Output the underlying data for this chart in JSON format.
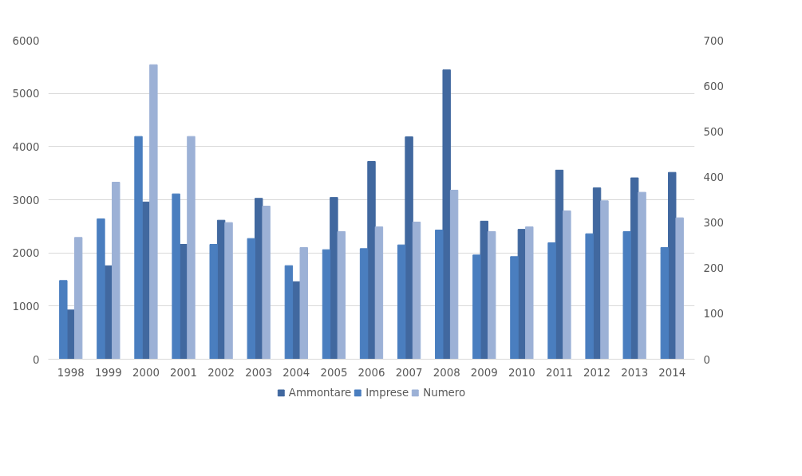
{
  "chart_data": {
    "type": "bar",
    "categories": [
      "1998",
      "1999",
      "2000",
      "2001",
      "2002",
      "2003",
      "2004",
      "2005",
      "2006",
      "2007",
      "2008",
      "2009",
      "2010",
      "2011",
      "2012",
      "2013",
      "2014"
    ],
    "series": [
      {
        "name": "Ammontare",
        "color": "#41689f",
        "axis": "y2",
        "values": [
          108,
          205,
          345,
          252,
          305,
          353,
          170,
          355,
          434,
          488,
          635,
          303,
          285,
          415,
          376,
          398,
          410
        ]
      },
      {
        "name": "Imprese",
        "color": "#4a7ebf",
        "values": [
          1480,
          2640,
          4190,
          3110,
          2160,
          2270,
          1760,
          2060,
          2080,
          2150,
          2430,
          1960,
          1930,
          2190,
          2360,
          2400,
          2100
        ]
      },
      {
        "name": "Numero",
        "color": "#9cb1d6",
        "values": [
          2290,
          3330,
          5540,
          4190,
          2570,
          2880,
          2100,
          2400,
          2490,
          2580,
          3180,
          2400,
          2490,
          2790,
          2980,
          3140,
          2660
        ]
      }
    ],
    "ylim": [
      0,
      6000
    ],
    "yticks": [
      0,
      1000,
      2000,
      3000,
      4000,
      5000,
      6000
    ],
    "y2lim": [
      0,
      700
    ],
    "y2ticks": [
      0,
      100,
      200,
      300,
      400,
      500,
      600,
      700
    ],
    "grid": "y",
    "legend": "bottom"
  }
}
